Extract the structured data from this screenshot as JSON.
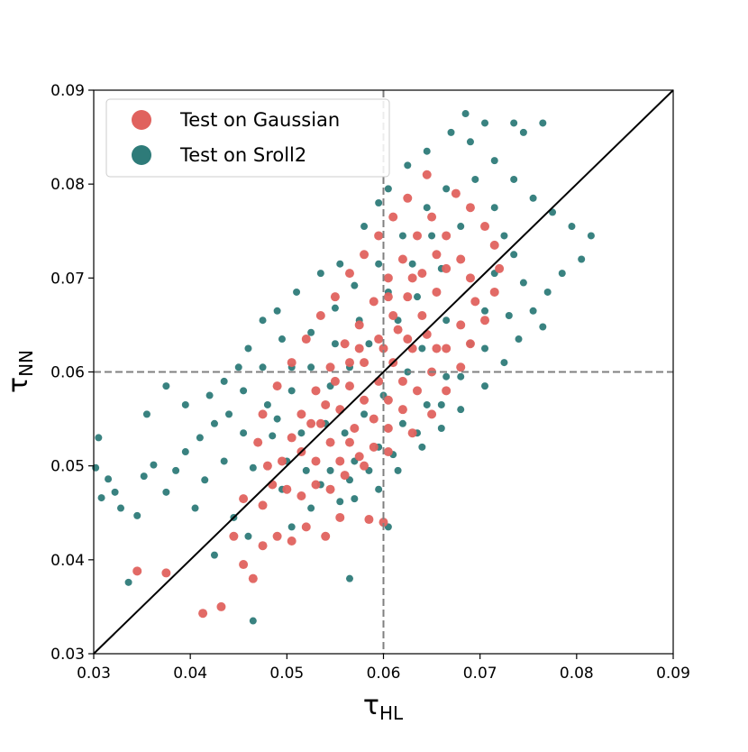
{
  "chart_data": {
    "type": "scatter",
    "xlabel": {
      "symbol": "τ",
      "subscript": "HL"
    },
    "ylabel": {
      "symbol": "τ",
      "subscript": "NN"
    },
    "xlim": [
      0.03,
      0.09
    ],
    "ylim": [
      0.03,
      0.09
    ],
    "xticks": [
      0.03,
      0.04,
      0.05,
      0.06,
      0.07,
      0.08,
      0.09
    ],
    "yticks": [
      0.03,
      0.04,
      0.05,
      0.06,
      0.07,
      0.08,
      0.09
    ],
    "legend": "upper left",
    "reference_lines": {
      "vline": 0.06,
      "hline": 0.06,
      "diagonal": [
        0.03,
        0.09
      ]
    },
    "series": [
      {
        "name": "Test on Sroll2",
        "color": "#2e7b79",
        "x": [
          0.0305,
          0.0302,
          0.0308,
          0.0315,
          0.0322,
          0.0328,
          0.0336,
          0.0345,
          0.0352,
          0.0362,
          0.0375,
          0.0385,
          0.0395,
          0.041,
          0.0425,
          0.0355,
          0.0375,
          0.0395,
          0.042,
          0.0435,
          0.045,
          0.046,
          0.0475,
          0.049,
          0.051,
          0.0535,
          0.0555,
          0.058,
          0.0595,
          0.0605,
          0.0625,
          0.0645,
          0.067,
          0.0685,
          0.0705,
          0.0735,
          0.0745,
          0.0765,
          0.069,
          0.0715,
          0.0735,
          0.0755,
          0.0775,
          0.0795,
          0.0815,
          0.0805,
          0.0785,
          0.077,
          0.0755,
          0.0765,
          0.074,
          0.0725,
          0.0705,
          0.068,
          0.066,
          0.064,
          0.0615,
          0.0605,
          0.0595,
          0.057,
          0.0555,
          0.0525,
          0.0505,
          0.046,
          0.0465,
          0.0565,
          0.0445,
          0.0425,
          0.0465,
          0.0485,
          0.048,
          0.0505,
          0.0525,
          0.055,
          0.057,
          0.0595,
          0.062,
          0.0645,
          0.0665,
          0.0695,
          0.0715,
          0.0725,
          0.0715,
          0.0705,
          0.069,
          0.0665,
          0.0645,
          0.062,
          0.0595,
          0.057,
          0.0545,
          0.052,
          0.05,
          0.0455,
          0.044,
          0.0455,
          0.0475,
          0.0495,
          0.0435,
          0.0415,
          0.0405,
          0.0495,
          0.0535,
          0.0565,
          0.0585,
          0.061,
          0.0635,
          0.066,
          0.068,
          0.0705,
          0.073,
          0.0745,
          0.0735,
          0.068,
          0.065,
          0.063,
          0.0605,
          0.0575,
          0.055,
          0.0525,
          0.0505,
          0.049,
          0.0515,
          0.054,
          0.0545,
          0.0565,
          0.0585,
          0.0615,
          0.0635,
          0.066,
          0.0665,
          0.064,
          0.0625,
          0.06,
          0.058,
          0.056
        ],
        "values": [
          0.053,
          0.0498,
          0.0466,
          0.0486,
          0.0472,
          0.0455,
          0.0376,
          0.0447,
          0.0489,
          0.0501,
          0.0472,
          0.0495,
          0.0515,
          0.053,
          0.0545,
          0.0555,
          0.0585,
          0.0565,
          0.0575,
          0.059,
          0.0605,
          0.0625,
          0.0655,
          0.0665,
          0.0685,
          0.0705,
          0.0715,
          0.0755,
          0.078,
          0.0795,
          0.082,
          0.0835,
          0.0855,
          0.0875,
          0.0865,
          0.0865,
          0.0855,
          0.0865,
          0.0845,
          0.0825,
          0.0805,
          0.0785,
          0.077,
          0.0755,
          0.0745,
          0.072,
          0.0705,
          0.0685,
          0.0665,
          0.0648,
          0.0635,
          0.061,
          0.0585,
          0.056,
          0.054,
          0.052,
          0.0495,
          0.0435,
          0.0475,
          0.0465,
          0.0462,
          0.0455,
          0.0435,
          0.0425,
          0.0335,
          0.038,
          0.0445,
          0.0405,
          0.0498,
          0.0532,
          0.0565,
          0.0605,
          0.0642,
          0.0668,
          0.0692,
          0.0715,
          0.0745,
          0.0775,
          0.0795,
          0.0805,
          0.0775,
          0.0745,
          0.0705,
          0.0665,
          0.063,
          0.0595,
          0.0565,
          0.0545,
          0.052,
          0.0505,
          0.0495,
          0.0495,
          0.0505,
          0.0535,
          0.0555,
          0.058,
          0.0605,
          0.0635,
          0.0505,
          0.0485,
          0.0455,
          0.0475,
          0.048,
          0.0485,
          0.0495,
          0.0512,
          0.0535,
          0.0565,
          0.0595,
          0.0625,
          0.066,
          0.0695,
          0.0725,
          0.0755,
          0.0745,
          0.0715,
          0.0685,
          0.0655,
          0.063,
          0.0605,
          0.058,
          0.055,
          0.0535,
          0.0545,
          0.0585,
          0.0605,
          0.063,
          0.0655,
          0.068,
          0.071,
          0.0655,
          0.0625,
          0.06,
          0.0575,
          0.0555,
          0.0535
        ]
      },
      {
        "name": "Test on Gaussian",
        "color": "#e0625e",
        "x": [
          0.0345,
          0.0375,
          0.0413,
          0.0432,
          0.0455,
          0.0445,
          0.0465,
          0.0475,
          0.049,
          0.0505,
          0.052,
          0.054,
          0.0555,
          0.0585,
          0.06,
          0.0455,
          0.0475,
          0.0485,
          0.05,
          0.0515,
          0.053,
          0.0545,
          0.056,
          0.058,
          0.0605,
          0.063,
          0.065,
          0.0665,
          0.068,
          0.069,
          0.0705,
          0.0715,
          0.072,
          0.0715,
          0.0705,
          0.069,
          0.0675,
          0.0645,
          0.0625,
          0.061,
          0.0595,
          0.058,
          0.0565,
          0.055,
          0.0535,
          0.052,
          0.0505,
          0.049,
          0.0475,
          0.047,
          0.048,
          0.0495,
          0.0505,
          0.0515,
          0.053,
          0.0545,
          0.056,
          0.0575,
          0.059,
          0.0605,
          0.062,
          0.0635,
          0.065,
          0.0665,
          0.068,
          0.069,
          0.0695,
          0.068,
          0.0665,
          0.065,
          0.0635,
          0.062,
          0.0605,
          0.059,
          0.0575,
          0.0555,
          0.053,
          0.0515,
          0.0525,
          0.054,
          0.0555,
          0.057,
          0.058,
          0.0595,
          0.061,
          0.0625,
          0.064,
          0.0655,
          0.0665,
          0.064,
          0.0625,
          0.061,
          0.0595,
          0.058,
          0.0565,
          0.055,
          0.0565,
          0.0575,
          0.06,
          0.0615,
          0.063,
          0.0645,
          0.0655,
          0.062,
          0.0605,
          0.059,
          0.0565,
          0.0545,
          0.0535,
          0.0605,
          0.063,
          0.0655
        ],
        "values": [
          0.0388,
          0.0386,
          0.0343,
          0.035,
          0.0395,
          0.0425,
          0.038,
          0.0415,
          0.0425,
          0.042,
          0.0435,
          0.0425,
          0.0445,
          0.0443,
          0.044,
          0.0465,
          0.0458,
          0.048,
          0.0475,
          0.0468,
          0.048,
          0.0475,
          0.049,
          0.05,
          0.0515,
          0.0535,
          0.0555,
          0.058,
          0.0605,
          0.063,
          0.0655,
          0.0685,
          0.071,
          0.0735,
          0.0755,
          0.0775,
          0.079,
          0.081,
          0.0785,
          0.0765,
          0.0745,
          0.0725,
          0.0705,
          0.068,
          0.066,
          0.0635,
          0.061,
          0.0585,
          0.0555,
          0.0525,
          0.05,
          0.0505,
          0.053,
          0.0555,
          0.058,
          0.0605,
          0.063,
          0.065,
          0.0675,
          0.07,
          0.072,
          0.0745,
          0.0765,
          0.0745,
          0.072,
          0.07,
          0.0675,
          0.065,
          0.0625,
          0.06,
          0.058,
          0.056,
          0.054,
          0.052,
          0.051,
          0.0505,
          0.0505,
          0.0515,
          0.0545,
          0.0565,
          0.056,
          0.054,
          0.057,
          0.059,
          0.061,
          0.0635,
          0.066,
          0.0685,
          0.071,
          0.0705,
          0.068,
          0.066,
          0.0635,
          0.061,
          0.0585,
          0.059,
          0.061,
          0.0625,
          0.0625,
          0.0645,
          0.0625,
          0.064,
          0.0625,
          0.059,
          0.057,
          0.055,
          0.0525,
          0.0525,
          0.0545,
          0.068,
          0.07,
          0.0725
        ]
      }
    ]
  }
}
